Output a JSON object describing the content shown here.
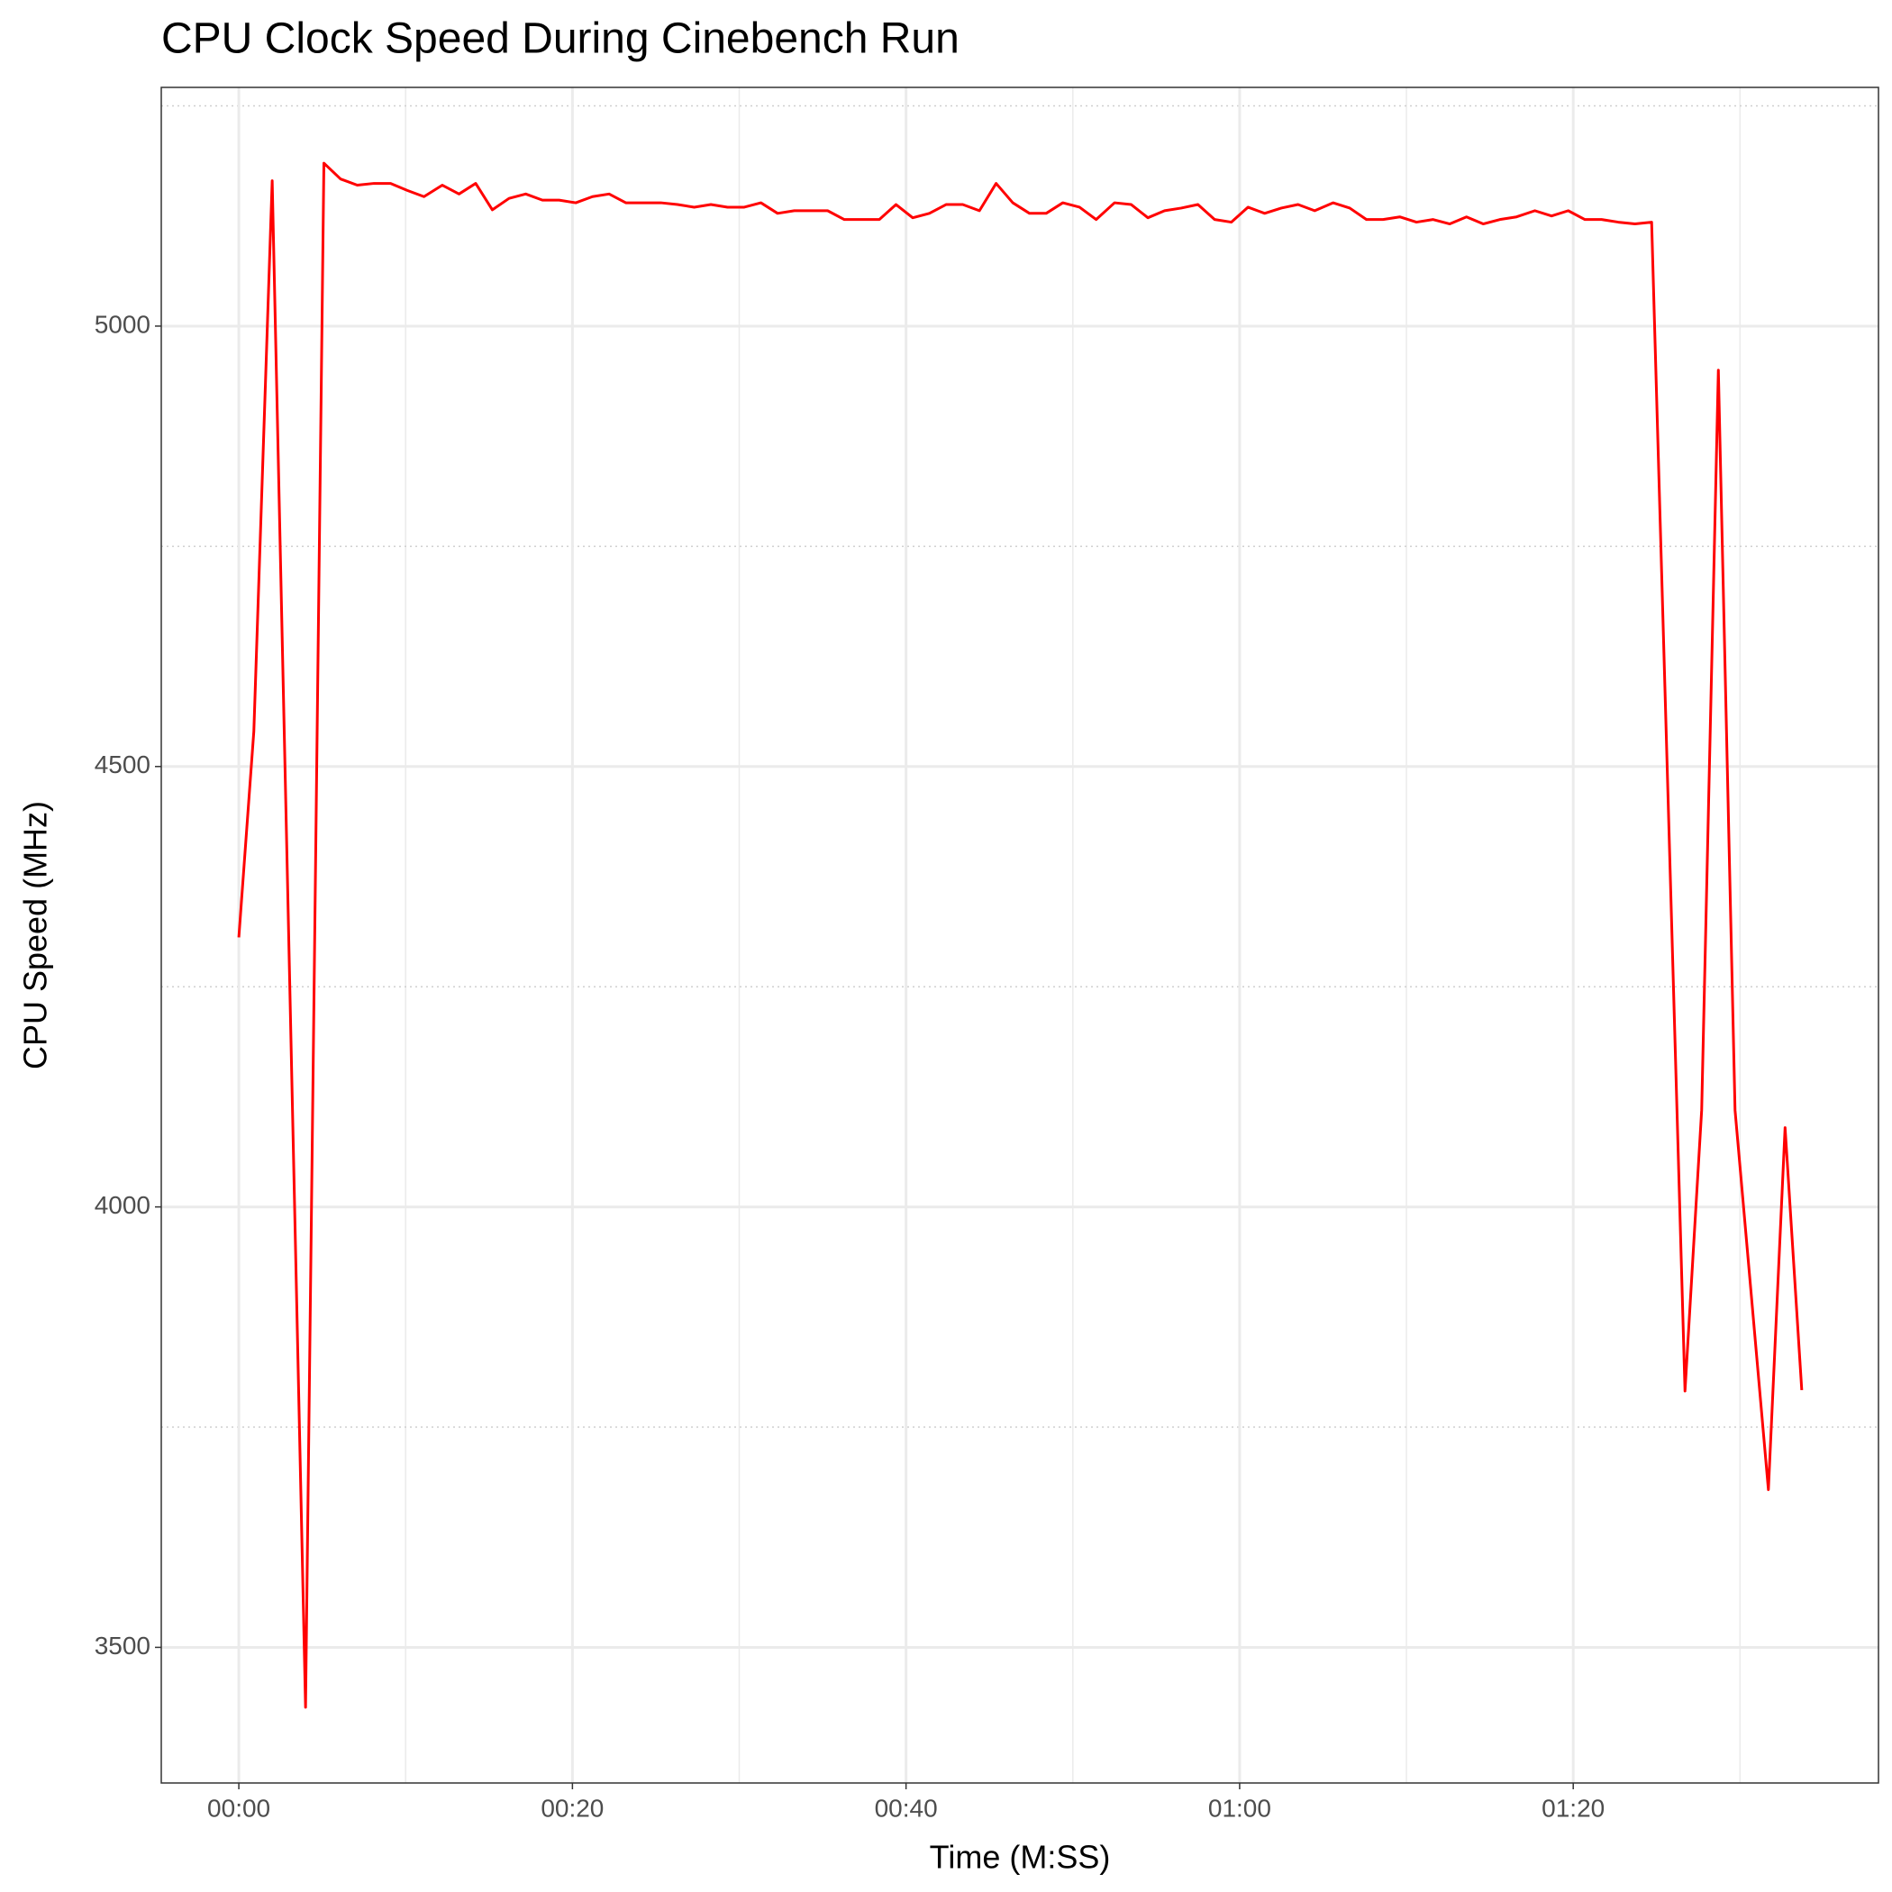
{
  "chart_data": {
    "type": "line",
    "title": "CPU Clock Speed During Cinebench Run",
    "x_label": "Time (M:SS)",
    "y_label": "CPU Speed (MHz)",
    "x": [
      0,
      0.9,
      2.0,
      4.0,
      5.1,
      6.1,
      7.1,
      8.1,
      9.1,
      10.1,
      11.1,
      12.2,
      13.2,
      14.2,
      15.2,
      16.2,
      17.2,
      18.2,
      19.2,
      20.2,
      21.2,
      22.2,
      23.2,
      24.2,
      25.3,
      26.3,
      27.3,
      28.3,
      29.3,
      30.3,
      31.3,
      32.3,
      33.3,
      34.3,
      35.3,
      36.3,
      37.3,
      38.4,
      39.4,
      40.4,
      41.4,
      42.4,
      43.4,
      44.4,
      45.4,
      46.4,
      47.4,
      48.4,
      49.4,
      50.4,
      51.4,
      52.5,
      53.5,
      54.5,
      55.5,
      56.5,
      57.5,
      58.5,
      59.5,
      60.5,
      61.5,
      62.5,
      63.5,
      64.5,
      65.6,
      66.6,
      67.6,
      68.6,
      69.6,
      70.6,
      71.6,
      72.6,
      73.6,
      74.6,
      75.6,
      76.6,
      77.7,
      78.7,
      79.7,
      80.7,
      81.7,
      82.7,
      83.7,
      84.7,
      86.7,
      87.7,
      88.7,
      89.7,
      91.7,
      92.7,
      93.7
    ],
    "series": [
      {
        "name": "CPU Speed",
        "color": "#ff0000",
        "values": [
          4306,
          4540,
          5165,
          3432,
          5185,
          5167,
          5160,
          5162,
          5162,
          5154,
          5147,
          5160,
          5150,
          5162,
          5132,
          5145,
          5150,
          5143,
          5143,
          5140,
          5147,
          5150,
          5140,
          5140,
          5140,
          5138,
          5135,
          5138,
          5135,
          5135,
          5140,
          5128,
          5131,
          5131,
          5131,
          5121,
          5121,
          5121,
          5138,
          5123,
          5128,
          5138,
          5138,
          5131,
          5162,
          5140,
          5128,
          5128,
          5140,
          5135,
          5121,
          5140,
          5138,
          5123,
          5131,
          5134,
          5138,
          5121,
          5118,
          5135,
          5128,
          5134,
          5138,
          5131,
          5140,
          5134,
          5121,
          5121,
          5124,
          5118,
          5121,
          5116,
          5124,
          5116,
          5121,
          5124,
          5131,
          5125,
          5131,
          5121,
          5121,
          5118,
          5116,
          5118,
          3791,
          4110,
          4950,
          4110,
          3679,
          4090,
          3792
        ]
      }
    ],
    "xlim": [
      -4.65,
      98.3
    ],
    "ylim": [
      3346,
      5271
    ],
    "xticks": [
      {
        "value": 0,
        "label": "00:00"
      },
      {
        "value": 20,
        "label": "00:20"
      },
      {
        "value": 40,
        "label": "00:40"
      },
      {
        "value": 60,
        "label": "01:00"
      },
      {
        "value": 80,
        "label": "01:20"
      }
    ],
    "yticks": [
      3500,
      4000,
      4500,
      5000
    ],
    "x_minor_ticks": [
      10,
      30,
      50,
      70,
      90
    ],
    "y_minor_ticks": [
      3750,
      4250,
      4750,
      5250
    ],
    "grid": true
  }
}
